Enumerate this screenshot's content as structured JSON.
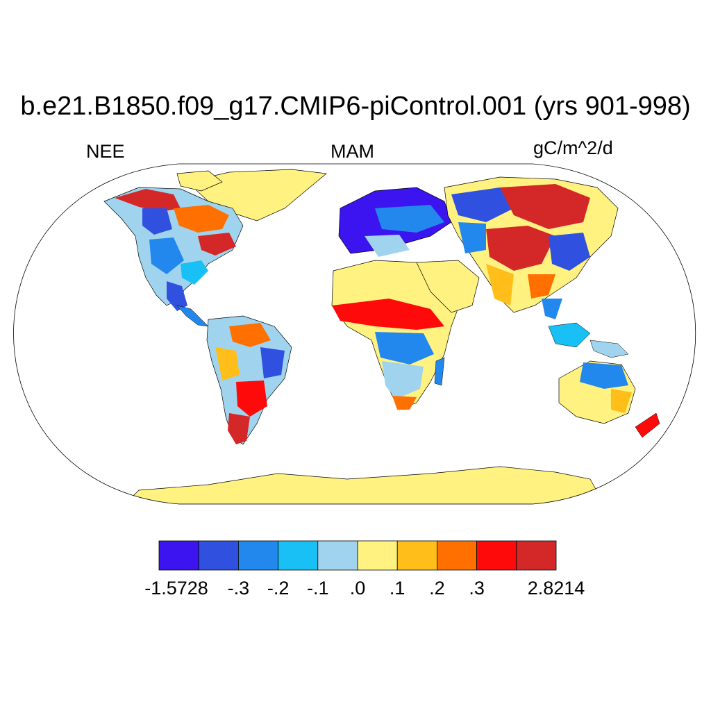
{
  "header": {
    "title": "b.e21.B1850.f09_g17.CMIP6-piControl.001 (yrs 901-998)",
    "left_label": "NEE",
    "center_label": "MAM",
    "right_label": "gC/m^2/d"
  },
  "colorbar": {
    "colors": [
      "#3b14f0",
      "#3050e0",
      "#2288ee",
      "#18c0f6",
      "#a0d4ee",
      "#fff280",
      "#ffbe1a",
      "#ff7000",
      "#ff0a0a",
      "#d42828"
    ],
    "labels": [
      "-1.5728",
      "-.3",
      "-.2",
      "-.1",
      ".0",
      ".1",
      ".2",
      ".3",
      "2.8214"
    ]
  },
  "colors": {
    "ocean": "#ffffff",
    "map_frame": "#000000",
    "coastline": "#000000"
  }
}
